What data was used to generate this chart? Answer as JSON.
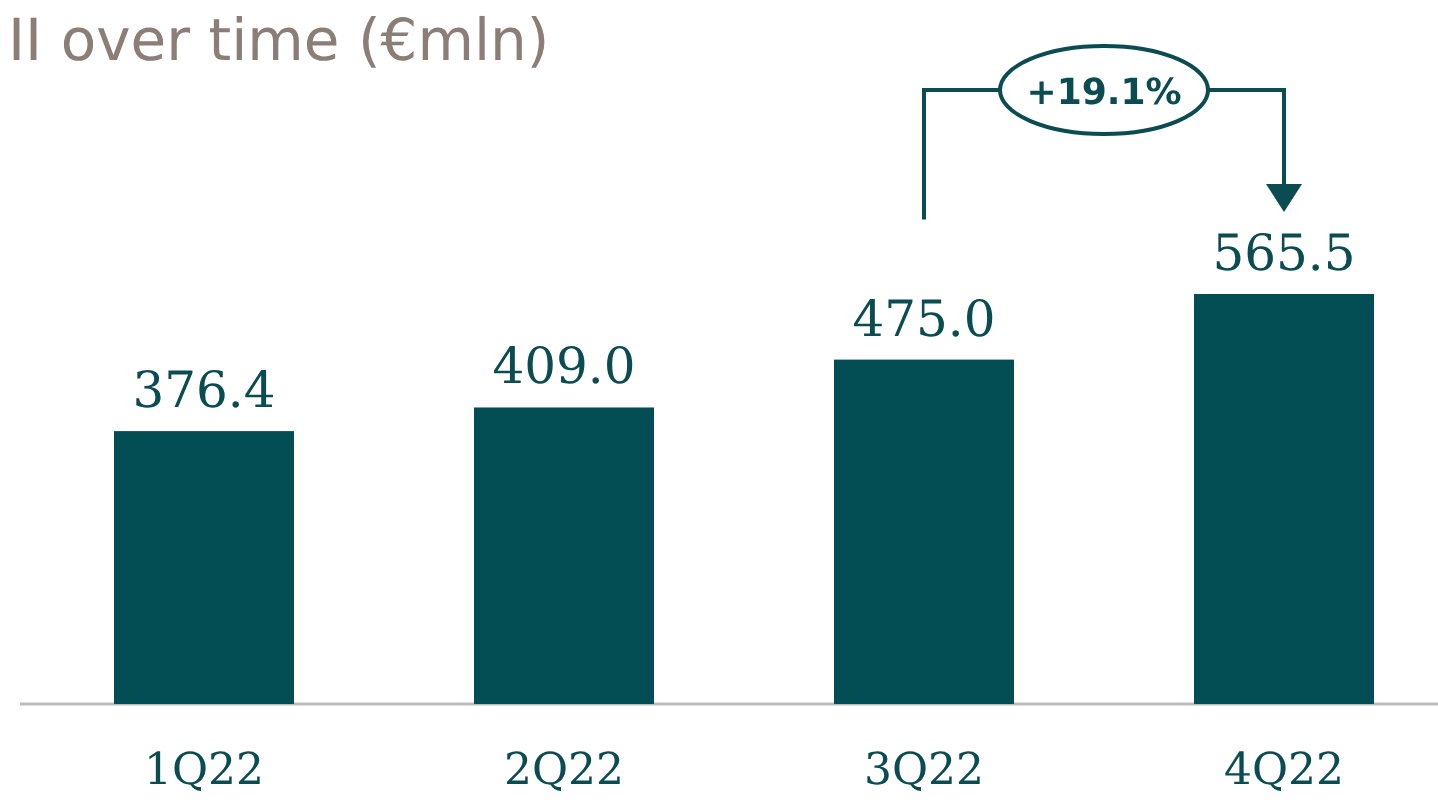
{
  "chart_data": {
    "type": "bar",
    "title": "II over time (€mln)",
    "categories": [
      "1Q22",
      "2Q22",
      "3Q22",
      "4Q22"
    ],
    "values": [
      376.4,
      409.0,
      475.0,
      565.5
    ],
    "value_labels": [
      "376.4",
      "409.0",
      "475.0",
      "565.5"
    ],
    "color": "#034e55",
    "annotations": [
      "+19.1%"
    ]
  }
}
